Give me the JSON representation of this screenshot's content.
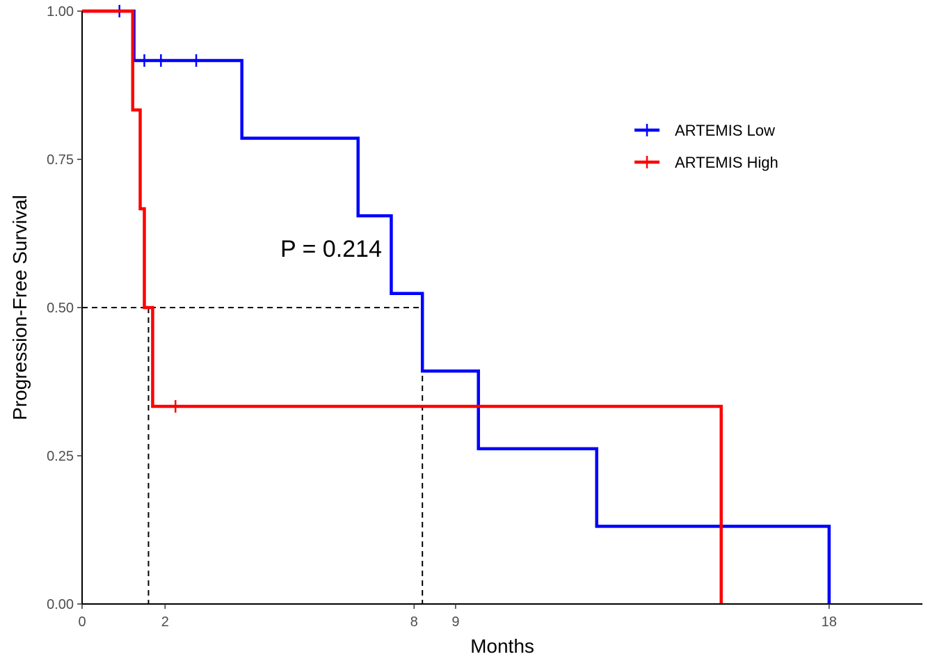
{
  "chart_data": {
    "type": "line",
    "subtype": "kaplan-meier",
    "title": "",
    "xlabel": "Months",
    "ylabel": "Progression-Free Survival",
    "xlim": [
      0,
      20.25
    ],
    "ylim": [
      0,
      1
    ],
    "x_ticks": [
      0,
      2,
      8,
      9,
      18
    ],
    "y_ticks": [
      0,
      0.25,
      0.5,
      0.75,
      1
    ],
    "y_tick_labels": [
      "0.00",
      "0.25",
      "0.50",
      "0.75",
      "1.00"
    ],
    "grid": false,
    "legend_position": "right",
    "annotation": "P = 0.214",
    "annotation_pos": {
      "x": 6,
      "y": 0.6
    },
    "median_lines": {
      "y": 0.5,
      "x": [
        1.6,
        8.2
      ]
    },
    "series": [
      {
        "name": "ARTEMIS Low",
        "color": "#0000ff",
        "steps": [
          [
            0,
            1.0
          ],
          [
            1.25,
            0.9167
          ],
          [
            3.85,
            0.7857
          ],
          [
            6.65,
            0.6548
          ],
          [
            7.45,
            0.5238
          ],
          [
            8.2,
            0.3929
          ],
          [
            9.55,
            0.2619
          ],
          [
            12.4,
            0.131
          ],
          [
            18.0,
            0.0
          ]
        ],
        "end_x": 18.0,
        "censor": [
          [
            0.9,
            1.0
          ],
          [
            1.5,
            0.9167
          ],
          [
            1.9,
            0.9167
          ],
          [
            2.75,
            0.9167
          ]
        ]
      },
      {
        "name": "ARTEMIS High",
        "color": "#ff0000",
        "steps": [
          [
            0,
            1.0
          ],
          [
            1.22,
            0.8333
          ],
          [
            1.4,
            0.6667
          ],
          [
            1.5,
            0.5
          ],
          [
            1.7,
            0.3333
          ],
          [
            15.4,
            0.0
          ]
        ],
        "end_x": 15.4,
        "censor": [
          [
            2.25,
            0.3333
          ]
        ]
      }
    ]
  }
}
